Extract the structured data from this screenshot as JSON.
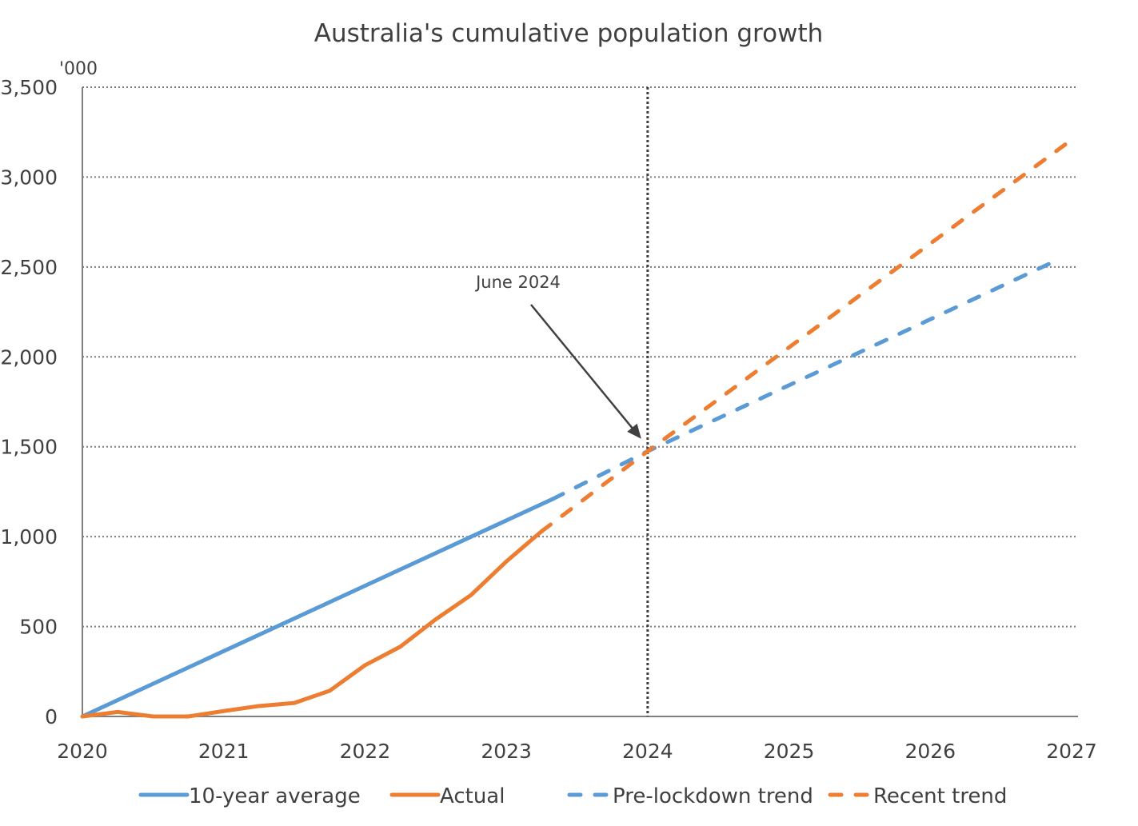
{
  "chart_data": {
    "type": "line",
    "title": "Australia's cumulative population growth",
    "ylabel": "'000",
    "xlabel": "",
    "xlim": [
      2020,
      2027
    ],
    "ylim": [
      0,
      3500
    ],
    "x_ticks": [
      2020,
      2021,
      2022,
      2023,
      2024,
      2025,
      2026,
      2027
    ],
    "y_ticks": [
      0,
      500,
      1000,
      1500,
      2000,
      2500,
      3000,
      3500
    ],
    "y_tick_labels": [
      "0",
      "500",
      "1,000",
      "1,500",
      "2,000",
      "2,500",
      "3,000",
      "3,500"
    ],
    "grid": "horizontal dotted",
    "legend_position": "bottom",
    "series": [
      {
        "name": "10-year average",
        "color": "#5B9BD5",
        "style": "solid",
        "x": [
          2020.0,
          2023.33
        ],
        "y": [
          0,
          1210
        ]
      },
      {
        "name": "Actual",
        "color": "#ED7D31",
        "style": "solid",
        "x": [
          2020.0,
          2020.25,
          2020.5,
          2020.75,
          2021.0,
          2021.25,
          2021.5,
          2021.75,
          2022.0,
          2022.25,
          2022.5,
          2022.75,
          2023.0,
          2023.25
        ],
        "y": [
          0,
          25,
          0,
          0,
          30,
          58,
          75,
          143,
          285,
          388,
          540,
          675,
          862,
          1030
        ]
      },
      {
        "name": "Pre-lockdown trend",
        "color": "#5B9BD5",
        "style": "dashed",
        "x": [
          2023.33,
          2024.0,
          2026.93
        ],
        "y": [
          1210,
          1475,
          2550
        ]
      },
      {
        "name": "Recent trend",
        "color": "#ED7D31",
        "style": "dashed",
        "x": [
          2023.25,
          2024.0,
          2026.97
        ],
        "y": [
          1030,
          1475,
          3190
        ]
      }
    ],
    "annotations": [
      {
        "text": "June 2024",
        "type": "arrow",
        "target_x": 2024.0,
        "target_y": 1500
      },
      {
        "type": "vertical-line",
        "x": 2024.0,
        "style": "dotted"
      }
    ]
  }
}
